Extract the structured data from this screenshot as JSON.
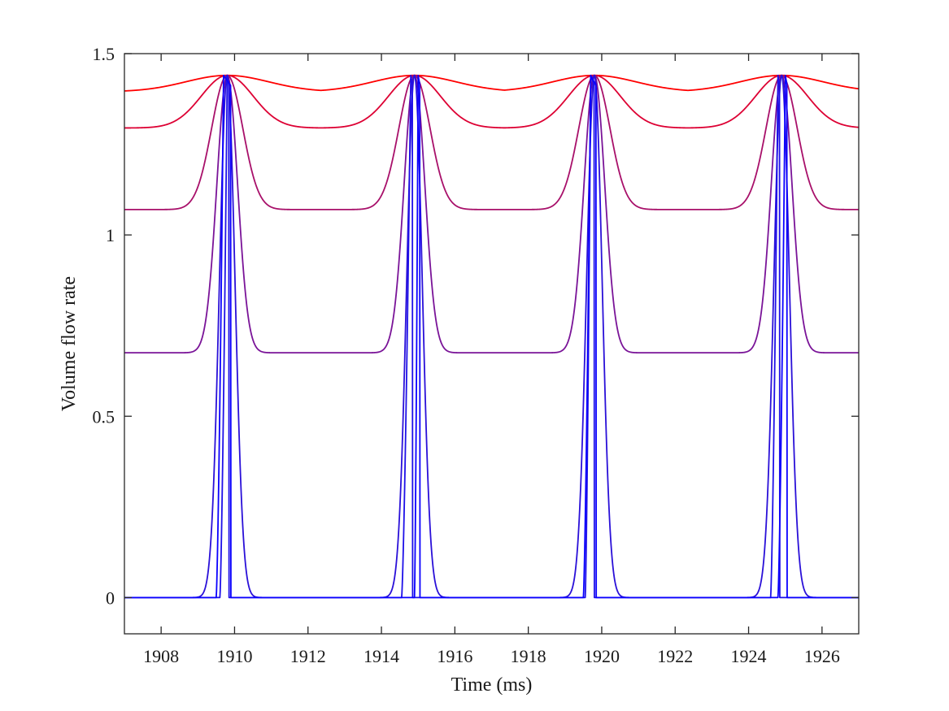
{
  "chart_data": {
    "type": "line",
    "title": "",
    "xlabel": "Time (ms)",
    "ylabel": "Volume flow rate",
    "xlim": [
      1907,
      1927
    ],
    "ylim": [
      -0.1,
      1.5
    ],
    "xticks": [
      1908,
      1910,
      1912,
      1914,
      1916,
      1918,
      1920,
      1922,
      1924,
      1926
    ],
    "xtick_labels": [
      "1908",
      "1910",
      "1912",
      "1914",
      "1916",
      "1918",
      "1920",
      "1922",
      "1924",
      "1926"
    ],
    "yticks": [
      0,
      0.5,
      1,
      1.5
    ],
    "ytick_labels": [
      "0",
      "0.5",
      "1",
      "1.5"
    ],
    "grid": false,
    "legend": "none",
    "peak_times": [
      1909.8,
      1914.9,
      1919.8,
      1924.9
    ],
    "peak_value": 1.44,
    "series": [
      {
        "color": "#ff0000",
        "baseline": 1.395,
        "halfwidth_ms": 1.6,
        "shape": "smooth"
      },
      {
        "color": "#dd0033",
        "baseline": 1.295,
        "halfwidth_ms": 1.0,
        "shape": "smooth"
      },
      {
        "color": "#a8106a",
        "baseline": 1.07,
        "halfwidth_ms": 0.6,
        "shape": "smooth"
      },
      {
        "color": "#7a1498",
        "baseline": 0.675,
        "halfwidth_ms": 0.4,
        "shape": "smooth"
      },
      {
        "color": "#2a10d8",
        "baseline": 0.0,
        "halfwidth_ms": 0.3,
        "shape": "smooth"
      },
      {
        "color": "#1e10e8",
        "baseline": 0.0,
        "halfwidth_ms": 0.25,
        "shape": "sawtooth",
        "peak_times": [
          1909.8,
          1914.8,
          1919.7,
          1924.8
        ],
        "rise_start_times": [
          1909.6,
          1914.55,
          1919.55,
          1924.6
        ],
        "drop_times": [
          1909.85,
          1914.85,
          1919.8,
          1924.85
        ]
      },
      {
        "color": "#0a00ff",
        "baseline": 0.0,
        "halfwidth_ms": 0.2,
        "shape": "sawtooth",
        "peak_times": [
          1909.7,
          1915.0,
          1919.7,
          1925.0
        ],
        "rise_start_times": [
          1909.5,
          1914.9,
          1919.5,
          1924.8
        ],
        "drop_times": [
          1909.9,
          1915.05,
          1919.85,
          1925.05
        ]
      }
    ]
  }
}
